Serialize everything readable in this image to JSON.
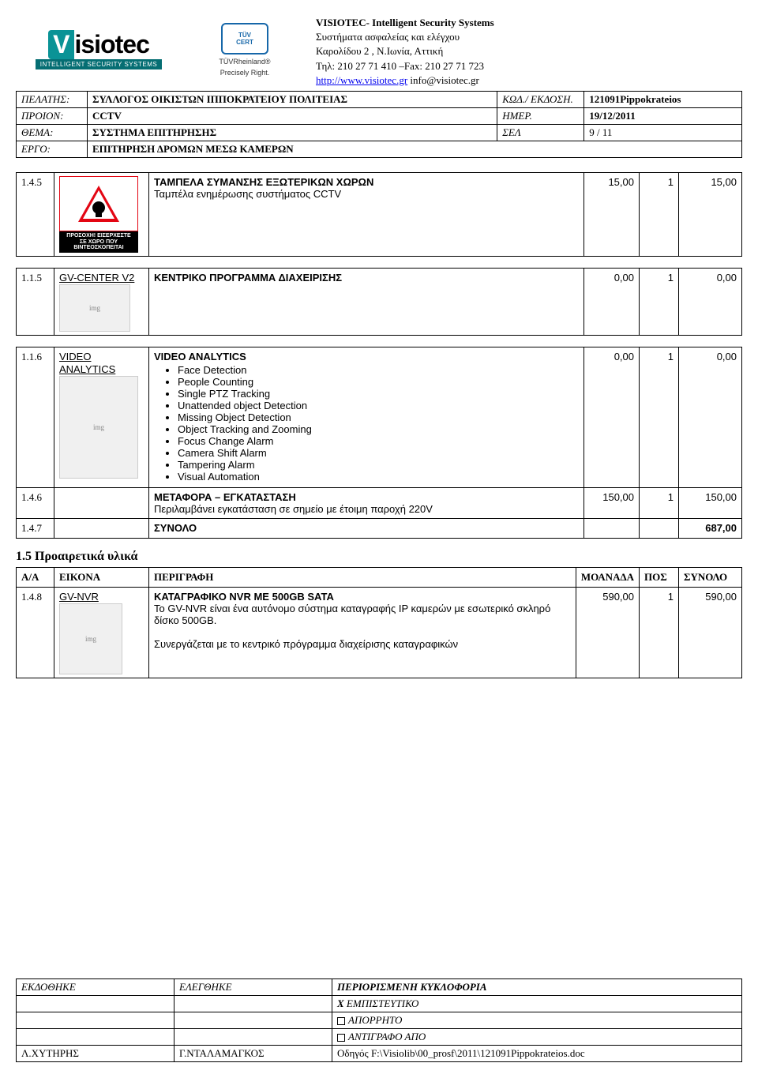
{
  "header": {
    "company_title": "VISIOTEC- Intelligent Security Systems",
    "line2": "Συστήματα ασφαλείας και ελέγχου",
    "line3": "Καρολίδου 2 , Ν.Ιωνία, Αττική",
    "line4": "Τηλ: 210 27 71 410 –Fax: 210 27 71 723",
    "url": "http://www.visiotec.gr",
    "email": "info@visiotec.gr",
    "logo_main": "isiotec",
    "logo_v": "V",
    "logo_sub": "INTELLIGENT SECURITY SYSTEMS",
    "tuv_top": "TÜV",
    "tuv_cert": "CERT",
    "tuv_rhein": "TÜVRheinland®",
    "tuv_precise": "Precisely Right."
  },
  "meta": {
    "client_label": "ΠΕΛΑΤΗΣ:",
    "client_value": "ΣΥΛΛΟΓΟΣ ΟΙΚΙΣΤΩΝ ΙΠΠΟΚΡΑΤΕΙΟΥ ΠΟΛΙΤΕΙΑΣ",
    "code_label": "ΚΩΔ./ ΕΚΔΟΣΗ.",
    "code_value": "121091Pippokrateios",
    "product_label": "ΠΡΟΙΟΝ:",
    "product_value": "CCTV",
    "date_label": "ΗΜΕΡ.",
    "date_value": "19/12/2011",
    "subject_label": "ΘΕΜΑ:",
    "subject_value": "ΣΥΣΤΗΜΑ ΕΠΙΤΗΡΗΣΗΣ",
    "page_label": "ΣΕΛ",
    "page_value": "9 / 11",
    "project_label": "ΕΡΓΟ:",
    "project_value": "ΕΠΙΤΗΡΗΣΗ ΔΡΟΜΩΝ ΜΕΣΩ ΚΑΜΕΡΩΝ"
  },
  "rows": {
    "r1": {
      "num": "1.4.5",
      "title": "ΤΑΜΠΕΛΑ ΣΥΜΑΝΣΗΣ ΕΞΩΤΕΡΙΚΩΝ ΧΩΡΩΝ",
      "sub": "Ταμπέλα ενημέρωσης συστήματος CCTV",
      "unit": "15,00",
      "qty": "1",
      "total": "15,00",
      "sign_line1": "ΠΡΟΣΟΧΗ! ΕΙΣΕΡΧΕΣΤΕ",
      "sign_line2": "ΣΕ ΧΩΡΟ ΠΟΥ",
      "sign_line3": "ΒΙΝΤΕΟΣΚΟΠΕΙΤΑΙ"
    },
    "r2": {
      "num": "1.1.5",
      "link": "GV-CENTER V2",
      "title": "ΚΕΝΤΡΙΚΟ ΠΡΟΓΡΑΜΜΑ ΔΙΑΧΕΙΡΙΣΗΣ",
      "unit": "0,00",
      "qty": "1",
      "total": "0,00"
    },
    "r3": {
      "num": "1.1.6",
      "link": "VIDEO ANALYTICS",
      "title": "VIDEO ANALYTICS",
      "items": [
        "Face Detection",
        "People Counting",
        "Single PTZ Tracking",
        "Unattended object Detection",
        "Missing Object Detection",
        "Object Tracking and Zooming",
        "Focus Change Alarm",
        "Camera Shift Alarm",
        "Tampering Alarm",
        "Visual Automation"
      ],
      "unit": "0,00",
      "qty": "1",
      "total": "0,00"
    },
    "r4": {
      "num": "1.4.6",
      "title": "ΜΕΤΑΦΟΡΑ – ΕΓΚΑΤΑΣΤΑΣΗ",
      "sub": "Περιλαμβάνει εγκατάσταση σε σημείο με έτοιμη παροχή 220V",
      "unit": "150,00",
      "qty": "1",
      "total": "150,00"
    },
    "r5": {
      "num": "1.4.7",
      "title": "ΣΥΝΟΛΟ",
      "total": "687,00"
    }
  },
  "section2": {
    "title": "1.5 Προαιρετικά υλικά",
    "headers": {
      "aa": "Α/Α",
      "eikona": "ΕΙΚΟΝΑ",
      "perigrafi": "ΠΕΡΙΓΡΑΦΗ",
      "monada": "ΜΟΑΝΑΔΑ",
      "pos": "ΠΟΣ",
      "synolo": "ΣΥΝΟΛΟ"
    },
    "row": {
      "num": "1.4.8",
      "link": "GV-NVR",
      "title": "ΚΑΤΑΓΡΑΦΙΚΟ NVR ΜΕ  500GB SATA",
      "line2": "Το GV-NVR είναι ένα αυτόνομο σύστημα καταγραφής IP καμερών με εσωτερικό σκληρό δίσκο 500GB.",
      "line3": "Συνεργάζεται με το κεντρικό πρόγραμμα διαχείρισης καταγραφικών",
      "unit": "590,00",
      "qty": "1",
      "total": "590,00"
    }
  },
  "footer": {
    "ekdothike": "ΕΚΔΟΘΗΚΕ",
    "elegxthike": "ΕΛΕΓΘΗΚΕ",
    "periorismeni": "ΠΕΡΙΟΡΙΣΜΕΝΗ ΚΥΚΛΟΦΟΡΙΑ",
    "empisteytiko": "ΕΜΠΙΣΤΕΥΤΙΚΟ",
    "aporrito": "ΑΠΟΡΡΗΤΟ",
    "antigrafo": "ΑΝΤΙΓΡΑΦΟ    ΑΠΟ",
    "name1": "Λ.ΧΥΤΗΡΗΣ",
    "name2": "Γ.ΝΤΑΛΑΜΑΓΚΟΣ",
    "path": "Οδηγός F:\\Visiolib\\00_prosf\\2011\\121091Pippokrateios.doc",
    "x_mark": "X"
  },
  "colors": {
    "text": "#000000",
    "link": "#0000ee",
    "teal": "#0a9396",
    "teal_dark": "#056e73",
    "tuv_blue": "#1667a9",
    "red": "#e30613"
  }
}
